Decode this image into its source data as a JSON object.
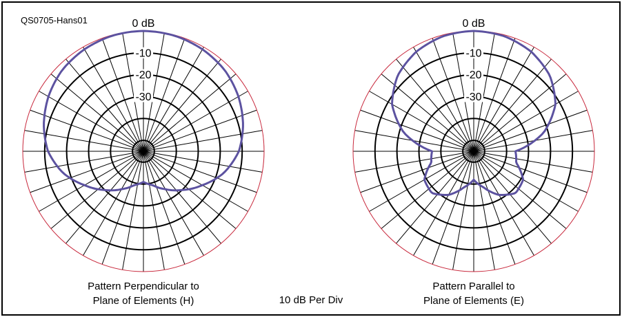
{
  "figure_id": "QS0705-Hans01",
  "center_label": "10 dB Per Div",
  "colors": {
    "outer_ring": "#c8283c",
    "rings": "#000000",
    "spokes": "#000000",
    "pattern": "#5c52a0"
  },
  "chart_data": [
    {
      "type": "polar",
      "caption_line1": "Pattern Perpendicular to",
      "caption_line2": "Plane of Elements (H)",
      "top_label": "0 dB",
      "ring_labels": [
        "-10",
        "-20",
        "-30"
      ],
      "rings_db": [
        0,
        -10,
        -20,
        -30,
        -40,
        -50
      ],
      "db_per_div": 10,
      "angles_deg": [
        0,
        15,
        30,
        45,
        60,
        75,
        90,
        105,
        120,
        135,
        150,
        165,
        180,
        195,
        210,
        225,
        240,
        255,
        270,
        285,
        300,
        315,
        330,
        345
      ],
      "gain_db": [
        0,
        -0.3,
        -1.2,
        -2.6,
        -5,
        -8,
        -11.5,
        -17,
        -24,
        -30,
        -35,
        -39,
        -41,
        -39,
        -35,
        -30,
        -24,
        -17,
        -11.5,
        -8,
        -5,
        -2.6,
        -1.2,
        -0.3
      ]
    },
    {
      "type": "polar",
      "caption_line1": "Pattern Parallel to",
      "caption_line2": "Plane of Elements (E)",
      "top_label": "0 dB",
      "ring_labels": [
        "-10",
        "-20",
        "-30"
      ],
      "rings_db": [
        0,
        -10,
        -20,
        -30,
        -40,
        -50
      ],
      "db_per_div": 10,
      "angles_deg": [
        0,
        15,
        30,
        45,
        60,
        75,
        90,
        105,
        120,
        135,
        150,
        165,
        180,
        195,
        210,
        225,
        240,
        255,
        270,
        285,
        300,
        315,
        330,
        345
      ],
      "gain_db": [
        0,
        -0.6,
        -2.5,
        -6,
        -12,
        -22,
        -36,
        -35,
        -29,
        -28,
        -32,
        -38,
        -42,
        -38,
        -32,
        -28,
        -29,
        -35,
        -36,
        -22,
        -12,
        -6,
        -2.5,
        -0.6
      ]
    }
  ]
}
